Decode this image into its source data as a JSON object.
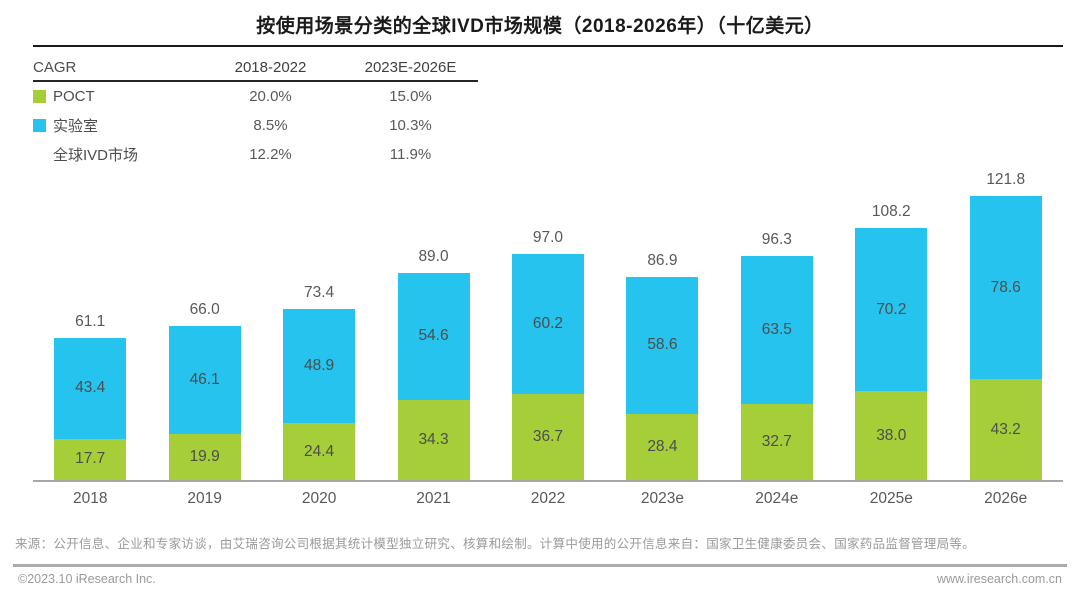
{
  "title": "按使用场景分类的全球IVD市场规模（2018-2026年）（十亿美元）",
  "cagr_table": {
    "headers": [
      "CAGR",
      "2018-2022",
      "2023E-2026E"
    ],
    "rows": [
      {
        "label": "POCT",
        "swatch": "poct-green",
        "cagr_2018_2022": "20.0%",
        "cagr_2023e_2026e": "15.0%"
      },
      {
        "label": "实验室",
        "swatch": "lab-blue",
        "cagr_2018_2022": "8.5%",
        "cagr_2023e_2026e": "10.3%"
      },
      {
        "label": "全球IVD市场",
        "swatch": "none",
        "cagr_2018_2022": "12.2%",
        "cagr_2023e_2026e": "11.9%"
      }
    ]
  },
  "chart_data": {
    "type": "bar",
    "stacked": true,
    "title": "按使用场景分类的全球IVD市场规模（2018-2026年）（十亿美元）",
    "unit": "十亿美元",
    "categories": [
      "2018",
      "2019",
      "2020",
      "2021",
      "2022",
      "2023e",
      "2024e",
      "2025e",
      "2026e"
    ],
    "series": [
      {
        "name": "POCT",
        "color": "#a5ce39",
        "values": [
          17.7,
          19.9,
          24.4,
          34.3,
          36.7,
          28.4,
          32.7,
          38.0,
          43.2
        ]
      },
      {
        "name": "实验室",
        "color": "#25c3ee",
        "values": [
          43.4,
          46.1,
          48.9,
          54.6,
          60.2,
          58.6,
          63.5,
          70.2,
          78.6
        ]
      }
    ],
    "totals": [
      61.1,
      66.0,
      73.4,
      89.0,
      97.0,
      86.9,
      96.3,
      108.2,
      121.8
    ],
    "ylim": [
      0,
      130
    ],
    "grid": false,
    "value_labels": true,
    "legend_position": "top-left-table"
  },
  "footer": {
    "source_note": "来源：公开信息、企业和专家访谈，由艾瑞咨询公司根据其统计模型独立研究、核算和绘制。计算中使用的公开信息来自：国家卫生健康委员会、国家药品监督管理局等。",
    "copyright": "©2023.10 iResearch Inc.",
    "website": "www.iresearch.com.cn"
  },
  "colors": {
    "poct_green": "#a5ce39",
    "lab_blue": "#25c3ee",
    "title_black": "#1a1a1a",
    "label_gray": "#595959"
  }
}
